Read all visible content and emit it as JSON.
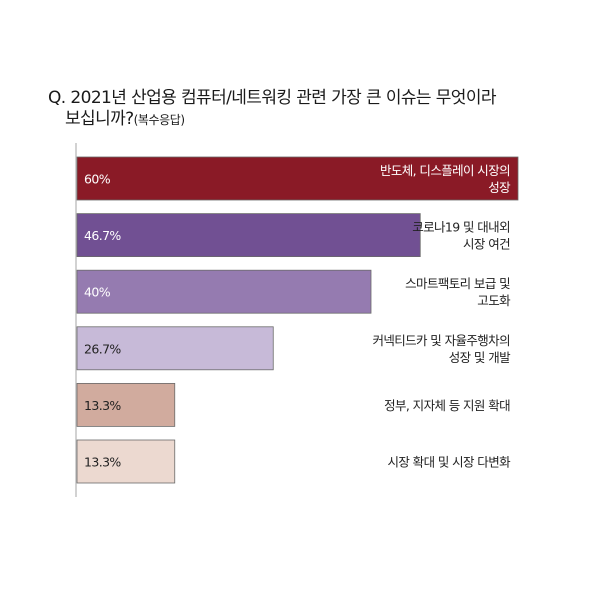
{
  "question": {
    "line1": "Q. 2021년 산업용 컴퓨터/네트워킹 관련 가장 큰 이슈는 무엇이라",
    "line2": "보십니까?",
    "note": "(복수응답)"
  },
  "chart_data": {
    "type": "bar",
    "orientation": "horizontal",
    "xlim": [
      0,
      60
    ],
    "categories": [
      [
        "반도체, 디스플레이 시장의",
        "성장"
      ],
      [
        "코로나19 및 대내외",
        "시장 여건"
      ],
      [
        "스마트팩토리 보급 및",
        "고도화"
      ],
      [
        "커넥티드카 및 자율주행차의",
        "성장 및 개발"
      ],
      [
        "정부, 지자체 등 지원 확대"
      ],
      [
        "시장 확대 및 시장 다변화"
      ]
    ],
    "values": [
      60,
      46.7,
      40,
      26.7,
      13.3,
      13.3
    ],
    "value_labels": [
      "60%",
      "46.7%",
      "40%",
      "26.7%",
      "13.3%",
      "13.3%"
    ],
    "colors": [
      "#8a1a26",
      "#715093",
      "#957bb0",
      "#c7bad8",
      "#d1ab9e",
      "#ecd9d0"
    ],
    "label_colors": [
      "#ffffff",
      "#ffffff",
      "#ffffff",
      "#222222",
      "#222222",
      "#222222"
    ],
    "grid": false,
    "legend": "none"
  }
}
